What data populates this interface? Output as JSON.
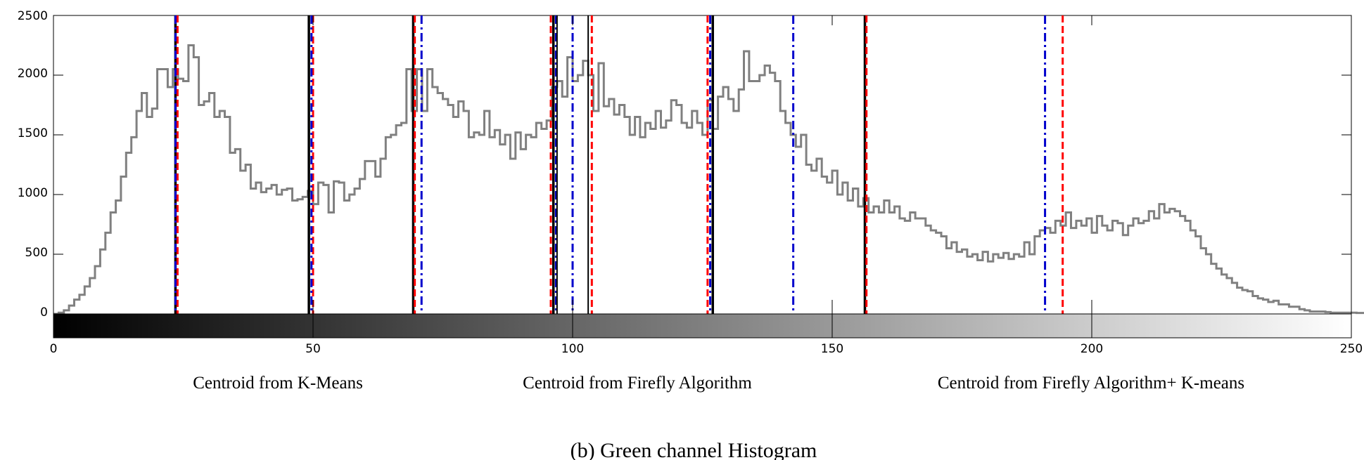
{
  "chart_data": {
    "type": "histogram",
    "title": "",
    "caption": "(b) Green channel Histogram",
    "xlabel": "",
    "ylabel": "",
    "xlim": [
      0,
      250
    ],
    "ylim": [
      0,
      2500
    ],
    "x_ticks": [
      "0",
      "50",
      "100",
      "150",
      "200",
      "250"
    ],
    "y_ticks": [
      "0",
      "500",
      "1000",
      "1500",
      "2000",
      "2500"
    ],
    "grid": false,
    "colorbar": "grayscale 0-250 below x axis",
    "histogram": {
      "bin_width": 1,
      "color": "#808080",
      "values": [
        0,
        10,
        30,
        70,
        120,
        160,
        230,
        300,
        400,
        540,
        680,
        850,
        950,
        1150,
        1350,
        1480,
        1700,
        1850,
        1650,
        1720,
        2050,
        2050,
        1900,
        2050,
        1970,
        1950,
        2250,
        2150,
        1750,
        1780,
        1850,
        1650,
        1700,
        1650,
        1350,
        1380,
        1200,
        1250,
        1050,
        1100,
        1020,
        1050,
        1080,
        1000,
        1040,
        1050,
        950,
        960,
        980,
        1030,
        920,
        1100,
        1080,
        850,
        1110,
        1100,
        950,
        1000,
        1050,
        1130,
        1280,
        1280,
        1150,
        1300,
        1480,
        1500,
        1580,
        1600,
        2050,
        1700,
        2050,
        1700,
        2050,
        1900,
        1850,
        1800,
        1750,
        1650,
        1780,
        1700,
        1480,
        1520,
        1500,
        1700,
        1480,
        1540,
        1420,
        1500,
        1300,
        1520,
        1380,
        1500,
        1480,
        1600,
        1550,
        1620,
        1900,
        1950,
        1820,
        2150,
        1950,
        2000,
        2120,
        2000,
        1700,
        2100,
        1740,
        1800,
        1670,
        1750,
        1650,
        1500,
        1650,
        1480,
        1600,
        1550,
        1700,
        1560,
        1620,
        1790,
        1750,
        1600,
        1560,
        1700,
        1600,
        1500,
        1790,
        1550,
        1820,
        1900,
        1800,
        1700,
        1880,
        2200,
        1950,
        1950,
        2000,
        2080,
        2020,
        1950,
        1700,
        1600,
        1500,
        1400,
        1500,
        1250,
        1200,
        1300,
        1150,
        1100,
        1200,
        1000,
        1100,
        950,
        1050,
        900,
        970,
        850,
        900,
        850,
        950,
        850,
        900,
        800,
        780,
        850,
        800,
        800,
        740,
        700,
        680,
        650,
        550,
        600,
        520,
        540,
        480,
        500,
        450,
        520,
        440,
        500,
        470,
        510,
        460,
        500,
        480,
        600,
        500,
        650,
        700,
        720,
        680,
        780,
        740,
        850,
        720,
        780,
        740,
        800,
        680,
        820,
        740,
        700,
        780,
        760,
        660,
        740,
        800,
        760,
        780,
        860,
        800,
        920,
        850,
        880,
        860,
        820,
        780,
        700,
        650,
        550,
        500,
        420,
        380,
        330,
        300,
        260,
        220,
        200,
        190,
        150,
        130,
        120,
        100,
        110,
        80,
        80,
        60,
        60,
        40,
        30,
        20,
        20,
        20,
        15,
        10,
        10,
        10,
        10,
        10,
        8,
        8,
        6,
        6,
        5,
        5,
        5,
        15,
        5,
        5,
        5,
        5,
        10,
        5,
        5,
        5
      ]
    },
    "series": [
      {
        "name": "Centroid from K-Means",
        "color": "#000000",
        "line_style": "solid",
        "values": [
          23.5,
          49.2,
          69.3,
          96.3,
          127.0,
          156.3
        ]
      },
      {
        "name": "Centroid from Firefly Algorithm",
        "color": "#0000cc",
        "line_style": "dash-dot",
        "values": [
          23.5,
          49.7,
          70.9,
          96.8,
          100.0,
          126.5,
          142.5,
          191.0
        ]
      },
      {
        "name": "Centroid from Firefly Algorithm+ K-means",
        "color": "#ff0000",
        "line_style": "dashed",
        "values": [
          23.9,
          50.0,
          69.6,
          95.8,
          103.7,
          126.0,
          156.6,
          194.4
        ]
      }
    ],
    "extra_black_lines": [
      97.0,
      103.0
    ]
  }
}
